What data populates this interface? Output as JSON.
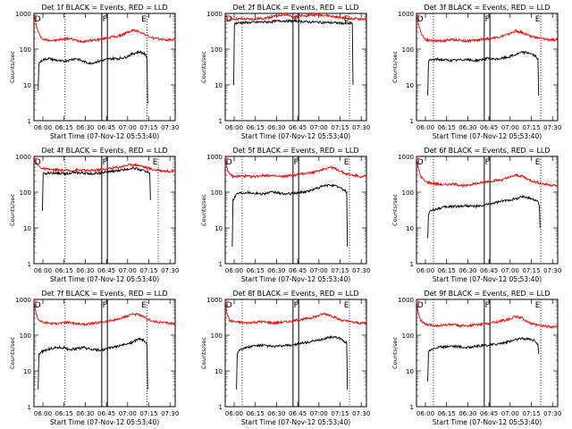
{
  "figure": {
    "x_tick_labels": [
      "06:00",
      "06:15",
      "06:30",
      "06:45",
      "07:00",
      "07:15",
      "07:30"
    ],
    "y_tick_labels": [
      "1",
      "10",
      "100",
      "1000"
    ],
    "ylabel": "Counts/sec",
    "xlabel": "Start Time (07-Nov-12 05:53:40)",
    "marker_labels": [
      "D",
      "F",
      "E"
    ]
  },
  "chart_data": [
    {
      "type": "line",
      "title": "Det 1f BLACK = Events, RED = LLD",
      "xlabel": "Start Time (07-Nov-12 05:53:40)",
      "ylabel": "Counts/sec",
      "x_unit": "minutes after 05:53:40",
      "xlim": [
        0,
        100
      ],
      "ylim": [
        1,
        1000
      ],
      "yscale": "log",
      "vlines_dotted": [
        22,
        80
      ],
      "vlines_solid": [
        48,
        52
      ],
      "series": [
        {
          "color": "#ff0000",
          "x": [
            0,
            1,
            3,
            6,
            10,
            15,
            20,
            25,
            30,
            35,
            40,
            45,
            50,
            55,
            60,
            65,
            70,
            75,
            80,
            85,
            90,
            95,
            100
          ],
          "y": [
            1000,
            600,
            300,
            190,
            180,
            175,
            190,
            200,
            175,
            165,
            175,
            185,
            200,
            220,
            230,
            280,
            340,
            310,
            240,
            200,
            190,
            180,
            190
          ]
        },
        {
          "color": "#000000",
          "x": [
            3,
            3.5,
            6,
            10,
            15,
            20,
            25,
            30,
            35,
            40,
            45,
            50,
            55,
            60,
            65,
            70,
            75,
            78,
            80,
            80.5
          ],
          "y": [
            7,
            40,
            50,
            55,
            50,
            45,
            50,
            55,
            45,
            40,
            45,
            50,
            55,
            55,
            60,
            75,
            85,
            75,
            60,
            3
          ]
        }
      ]
    },
    {
      "type": "line",
      "title": "Det 2f BLACK = Events, RED = LLD",
      "xlabel": "Start Time (07-Nov-12 05:53:40)",
      "ylabel": "Counts/sec",
      "x_unit": "minutes after 05:53:40",
      "xlim": [
        0,
        100
      ],
      "ylim": [
        1,
        1000
      ],
      "yscale": "log",
      "vlines_dotted": [
        12,
        88
      ],
      "vlines_solid": [
        48,
        52
      ],
      "series": [
        {
          "color": "#ff0000",
          "x": [
            0,
            2,
            6,
            10,
            20,
            30,
            40,
            50,
            60,
            70,
            80,
            90,
            100
          ],
          "y": [
            850,
            650,
            700,
            700,
            690,
            760,
            920,
            820,
            900,
            900,
            780,
            700,
            700
          ]
        },
        {
          "color": "#000000",
          "x": [
            6,
            6.5,
            10,
            20,
            30,
            40,
            50,
            60,
            70,
            80,
            90,
            90.5
          ],
          "y": [
            10,
            520,
            550,
            560,
            580,
            620,
            610,
            580,
            560,
            540,
            520,
            10
          ]
        }
      ]
    },
    {
      "type": "line",
      "title": "Det 3f BLACK = Events, RED = LLD",
      "xlabel": "Start Time (07-Nov-12 05:53:40)",
      "ylabel": "Counts/sec",
      "x_unit": "minutes after 05:53:40",
      "xlim": [
        0,
        100
      ],
      "ylim": [
        1,
        1000
      ],
      "yscale": "log",
      "vlines_dotted": [
        12,
        88
      ],
      "vlines_solid": [
        48,
        52
      ],
      "series": [
        {
          "color": "#ff0000",
          "x": [
            0,
            1,
            3,
            6,
            10,
            15,
            20,
            25,
            30,
            35,
            40,
            45,
            50,
            55,
            60,
            65,
            70,
            75,
            80,
            85,
            90,
            95,
            100
          ],
          "y": [
            1000,
            600,
            300,
            190,
            175,
            170,
            175,
            185,
            180,
            170,
            175,
            185,
            195,
            210,
            230,
            260,
            320,
            290,
            240,
            210,
            195,
            180,
            185
          ]
        },
        {
          "color": "#000000",
          "x": [
            8,
            8.5,
            10,
            15,
            20,
            25,
            30,
            35,
            40,
            45,
            50,
            55,
            60,
            65,
            70,
            75,
            80,
            84,
            86,
            86.5
          ],
          "y": [
            5,
            45,
            50,
            52,
            50,
            48,
            50,
            52,
            48,
            50,
            55,
            52,
            55,
            60,
            70,
            82,
            78,
            65,
            55,
            5
          ]
        }
      ]
    },
    {
      "type": "line",
      "title": "Det 4f BLACK = Events, RED = LLD",
      "xlabel": "Start Time (07-Nov-12 05:53:40)",
      "ylabel": "Counts/sec",
      "x_unit": "minutes after 05:53:40",
      "xlim": [
        0,
        100
      ],
      "ylim": [
        1,
        1000
      ],
      "yscale": "log",
      "vlines_dotted": [
        22,
        88
      ],
      "vlines_solid": [
        48,
        52
      ],
      "series": [
        {
          "color": "#ff0000",
          "x": [
            0,
            1,
            3,
            6,
            10,
            15,
            20,
            25,
            30,
            35,
            40,
            45,
            50,
            55,
            60,
            65,
            70,
            75,
            80,
            85,
            90,
            95,
            100
          ],
          "y": [
            1000,
            700,
            550,
            460,
            430,
            420,
            410,
            400,
            420,
            410,
            400,
            420,
            440,
            470,
            500,
            560,
            600,
            560,
            480,
            430,
            400,
            390,
            390
          ]
        },
        {
          "color": "#000000",
          "x": [
            6,
            6.5,
            10,
            15,
            20,
            25,
            30,
            35,
            40,
            45,
            50,
            55,
            60,
            65,
            70,
            75,
            80,
            82,
            82.5
          ],
          "y": [
            30,
            320,
            340,
            350,
            330,
            340,
            350,
            340,
            330,
            340,
            360,
            380,
            400,
            440,
            480,
            430,
            380,
            350,
            60
          ]
        }
      ]
    },
    {
      "type": "line",
      "title": "Det 5f BLACK = Events, RED = LLD",
      "xlabel": "Start Time (07-Nov-12 05:53:40)",
      "ylabel": "Counts/sec",
      "x_unit": "minutes after 05:53:40",
      "xlim": [
        0,
        100
      ],
      "ylim": [
        1,
        1000
      ],
      "yscale": "log",
      "vlines_dotted": [
        12,
        88
      ],
      "vlines_solid": [
        48,
        52
      ],
      "series": [
        {
          "color": "#ff0000",
          "x": [
            0,
            2,
            6,
            10,
            15,
            20,
            25,
            30,
            35,
            40,
            45,
            50,
            55,
            60,
            65,
            70,
            75,
            80,
            85,
            90,
            95,
            100
          ],
          "y": [
            1000,
            350,
            270,
            280,
            280,
            270,
            290,
            300,
            280,
            270,
            290,
            300,
            330,
            350,
            380,
            450,
            500,
            420,
            330,
            300,
            280,
            270
          ]
        },
        {
          "color": "#000000",
          "x": [
            5,
            5.5,
            8,
            10,
            15,
            20,
            25,
            30,
            35,
            40,
            45,
            50,
            55,
            60,
            65,
            70,
            75,
            80,
            85,
            86,
            86.5
          ],
          "y": [
            3,
            60,
            90,
            95,
            100,
            95,
            90,
            95,
            100,
            90,
            90,
            95,
            100,
            110,
            130,
            150,
            160,
            140,
            110,
            100,
            3
          ]
        }
      ]
    },
    {
      "type": "line",
      "title": "Det 6f BLACK = Events, RED = LLD",
      "xlabel": "Start Time (07-Nov-12 05:53:40)",
      "ylabel": "Counts/sec",
      "x_unit": "minutes after 05:53:40",
      "xlim": [
        0,
        100
      ],
      "ylim": [
        1,
        1000
      ],
      "yscale": "log",
      "vlines_dotted": [
        12,
        88
      ],
      "vlines_solid": [
        48,
        52
      ],
      "series": [
        {
          "color": "#ff0000",
          "x": [
            0,
            1,
            3,
            6,
            10,
            15,
            20,
            25,
            30,
            35,
            40,
            45,
            50,
            55,
            60,
            65,
            70,
            75,
            80,
            85,
            90,
            95,
            100
          ],
          "y": [
            1000,
            500,
            280,
            200,
            180,
            170,
            160,
            170,
            160,
            150,
            170,
            180,
            200,
            210,
            220,
            250,
            300,
            280,
            220,
            190,
            170,
            160,
            150
          ]
        },
        {
          "color": "#000000",
          "x": [
            8,
            8.5,
            10,
            15,
            20,
            25,
            30,
            35,
            40,
            45,
            50,
            55,
            60,
            65,
            70,
            75,
            80,
            86,
            87,
            87.5
          ],
          "y": [
            5,
            25,
            30,
            35,
            38,
            40,
            40,
            42,
            40,
            40,
            45,
            50,
            55,
            60,
            65,
            75,
            70,
            55,
            40,
            10
          ]
        }
      ]
    },
    {
      "type": "line",
      "title": "Det 7f BLACK = Events, RED = LLD",
      "xlabel": "Start Time (07-Nov-12 05:53:40)",
      "ylabel": "Counts/sec",
      "x_unit": "minutes after 05:53:40",
      "xlim": [
        0,
        100
      ],
      "ylim": [
        1,
        1000
      ],
      "yscale": "log",
      "vlines_dotted": [
        22,
        80
      ],
      "vlines_solid": [
        48,
        52
      ],
      "series": [
        {
          "color": "#ff0000",
          "x": [
            0,
            1,
            3,
            6,
            10,
            15,
            20,
            25,
            30,
            35,
            40,
            45,
            50,
            55,
            60,
            65,
            70,
            75,
            80,
            85,
            90,
            95,
            100
          ],
          "y": [
            1000,
            500,
            280,
            230,
            220,
            210,
            220,
            230,
            210,
            200,
            210,
            220,
            240,
            260,
            280,
            330,
            400,
            360,
            280,
            240,
            230,
            220,
            210
          ]
        },
        {
          "color": "#000000",
          "x": [
            3,
            3.5,
            6,
            10,
            15,
            20,
            25,
            30,
            35,
            40,
            45,
            50,
            55,
            60,
            65,
            70,
            75,
            78,
            80,
            80.5
          ],
          "y": [
            3,
            30,
            35,
            40,
            45,
            45,
            40,
            42,
            45,
            40,
            38,
            40,
            45,
            50,
            55,
            65,
            80,
            70,
            55,
            3
          ]
        }
      ]
    },
    {
      "type": "line",
      "title": "Det 8f BLACK = Events, RED = LLD",
      "xlabel": "Start Time (07-Nov-12 05:53:40)",
      "ylabel": "Counts/sec",
      "x_unit": "minutes after 05:53:40",
      "xlim": [
        0,
        100
      ],
      "ylim": [
        1,
        1000
      ],
      "yscale": "log",
      "vlines_dotted": [
        12,
        88
      ],
      "vlines_solid": [
        48,
        52
      ],
      "series": [
        {
          "color": "#ff0000",
          "x": [
            0,
            1,
            3,
            6,
            10,
            15,
            20,
            25,
            30,
            35,
            40,
            45,
            50,
            55,
            60,
            65,
            70,
            75,
            80,
            85,
            90,
            95,
            100
          ],
          "y": [
            1000,
            450,
            260,
            240,
            230,
            220,
            230,
            240,
            230,
            220,
            230,
            240,
            260,
            280,
            300,
            340,
            400,
            360,
            280,
            250,
            230,
            220,
            220
          ]
        },
        {
          "color": "#000000",
          "x": [
            8,
            8.5,
            10,
            15,
            20,
            25,
            30,
            35,
            40,
            45,
            50,
            55,
            60,
            65,
            70,
            75,
            80,
            84,
            86,
            86.5
          ],
          "y": [
            3,
            30,
            40,
            45,
            50,
            52,
            50,
            48,
            50,
            52,
            55,
            60,
            65,
            70,
            80,
            90,
            85,
            70,
            60,
            3
          ]
        }
      ]
    },
    {
      "type": "line",
      "title": "Det 9f BLACK = Events, RED = LLD",
      "xlabel": "Start Time (07-Nov-12 05:53:40)",
      "ylabel": "Counts/sec",
      "x_unit": "minutes after 05:53:40",
      "xlim": [
        0,
        100
      ],
      "ylim": [
        1,
        1000
      ],
      "yscale": "log",
      "vlines_dotted": [
        12,
        88
      ],
      "vlines_solid": [
        48,
        52
      ],
      "series": [
        {
          "color": "#ff0000",
          "x": [
            0,
            1,
            3,
            6,
            10,
            15,
            20,
            25,
            30,
            35,
            40,
            45,
            50,
            55,
            60,
            65,
            70,
            75,
            80,
            85,
            90,
            95,
            100
          ],
          "y": [
            1000,
            450,
            260,
            200,
            190,
            185,
            190,
            200,
            185,
            180,
            190,
            200,
            210,
            230,
            250,
            280,
            330,
            300,
            220,
            190,
            180,
            175,
            170
          ]
        },
        {
          "color": "#000000",
          "x": [
            8,
            8.5,
            10,
            15,
            20,
            25,
            30,
            35,
            40,
            45,
            50,
            55,
            60,
            65,
            70,
            75,
            80,
            84,
            86,
            86.5
          ],
          "y": [
            5,
            35,
            40,
            45,
            48,
            50,
            48,
            45,
            48,
            50,
            52,
            55,
            60,
            65,
            75,
            80,
            78,
            70,
            55,
            30
          ]
        }
      ]
    }
  ]
}
